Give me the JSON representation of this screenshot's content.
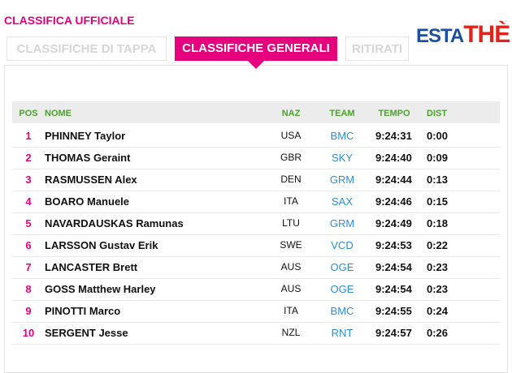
{
  "header": {
    "title": "CLASSIFICA UFFICIALE",
    "logo": {
      "part1": "ESTA",
      "part2": "THÈ"
    }
  },
  "tabs": [
    "CLASSIFICHE DI TAPPA",
    "CLASSIFICHE GENERALI",
    "RITIRATI"
  ],
  "table": {
    "columns": [
      "POS",
      "NOME",
      "NAZ",
      "TEAM",
      "TEMPO",
      "DIST"
    ],
    "rows": [
      [
        "1",
        "PHINNEY Taylor",
        "USA",
        "BMC",
        "9:24:31",
        "0:00"
      ],
      [
        "2",
        "THOMAS Geraint",
        "GBR",
        "SKY",
        "9:24:40",
        "0:09"
      ],
      [
        "3",
        "RASMUSSEN Alex",
        "DEN",
        "GRM",
        "9:24:44",
        "0:13"
      ],
      [
        "4",
        "BOARO Manuele",
        "ITA",
        "SAX",
        "9:24:46",
        "0:15"
      ],
      [
        "5",
        "NAVARDAUSKAS Ramunas",
        "LTU",
        "GRM",
        "9:24:49",
        "0:18"
      ],
      [
        "6",
        "LARSSON Gustav Erik",
        "SWE",
        "VCD",
        "9:24:53",
        "0:22"
      ],
      [
        "7",
        "LANCASTER Brett",
        "AUS",
        "OGE",
        "9:24:54",
        "0:23"
      ],
      [
        "8",
        "GOSS Matthew Harley",
        "AUS",
        "OGE",
        "9:24:54",
        "0:23"
      ],
      [
        "9",
        "PINOTTI Marco",
        "ITA",
        "BMC",
        "9:24:55",
        "0:24"
      ],
      [
        "10",
        "SERGENT Jesse",
        "NZL",
        "RNT",
        "9:24:57",
        "0:26"
      ]
    ]
  }
}
